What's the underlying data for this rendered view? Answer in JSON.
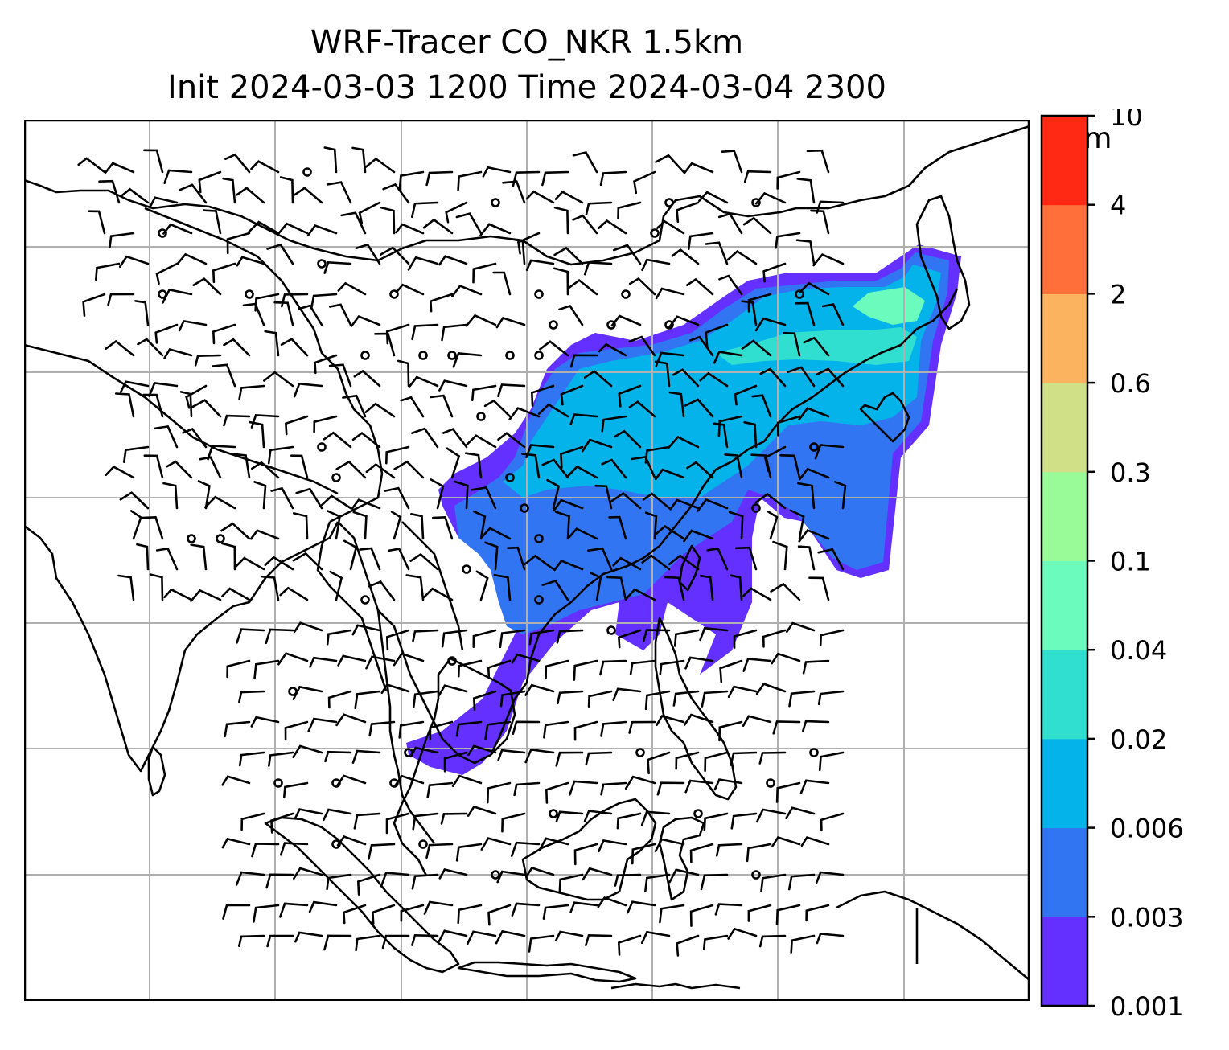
{
  "title_line1": "WRF-Tracer CO_NKR 1.5km",
  "title_line2": "Init 2024-03-03 1200 Time 2024-03-04 2300",
  "colorbar": {
    "unit": "ppm",
    "ticks": [
      "0.001",
      "0.003",
      "0.006",
      "0.02",
      "0.04",
      "0.1",
      "0.3",
      "0.6",
      "2",
      "4",
      "10"
    ],
    "colors": [
      "#6330ff",
      "#3275f3",
      "#04b3e9",
      "#31dfd0",
      "#6afbbd",
      "#98fb98",
      "#cfe087",
      "#fbb35f",
      "#ff6f3a",
      "#ff2914"
    ]
  },
  "map": {
    "gridlines": true,
    "plume_colors": [
      "#6330ff",
      "#3275f3",
      "#04b3e9",
      "#31dfd0",
      "#6afbbd"
    ]
  }
}
